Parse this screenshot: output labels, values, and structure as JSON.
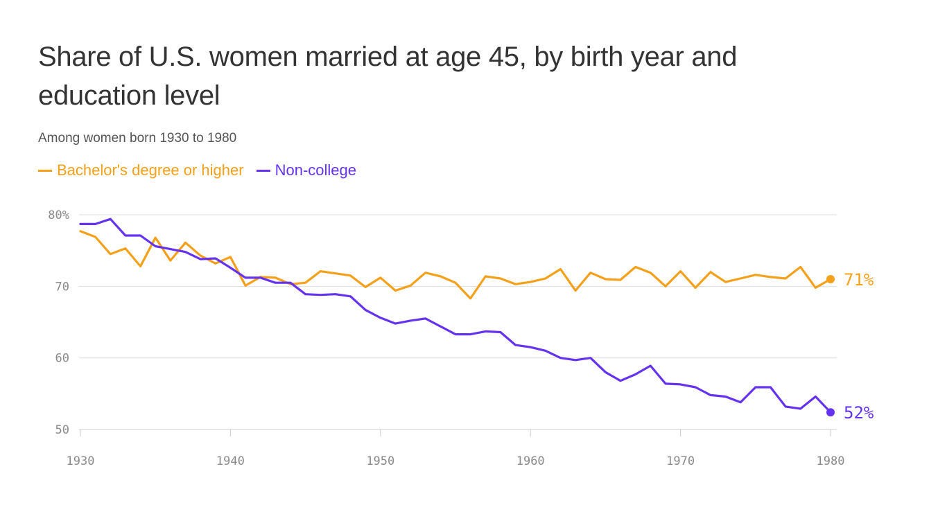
{
  "chart_data": {
    "type": "line",
    "title": "Share of U.S. women married at age 45, by birth year and education level",
    "subtitle": "Among women born 1930 to 1980",
    "x": [
      1930,
      1931,
      1932,
      1933,
      1934,
      1935,
      1936,
      1937,
      1938,
      1939,
      1940,
      1941,
      1942,
      1943,
      1944,
      1945,
      1946,
      1947,
      1948,
      1949,
      1950,
      1951,
      1952,
      1953,
      1954,
      1955,
      1956,
      1957,
      1958,
      1959,
      1960,
      1961,
      1962,
      1963,
      1964,
      1965,
      1966,
      1967,
      1968,
      1969,
      1970,
      1971,
      1972,
      1973,
      1974,
      1975,
      1976,
      1977,
      1978,
      1979,
      1980
    ],
    "series": [
      {
        "name": "Bachelor's degree or higher",
        "color": "#f5a01a",
        "end_label": "71%",
        "values": [
          77.7,
          76.9,
          74.5,
          75.3,
          72.8,
          76.8,
          73.6,
          76.1,
          74.3,
          73.2,
          74.1,
          70.1,
          71.3,
          71.2,
          70.3,
          70.5,
          72.1,
          71.8,
          71.5,
          69.9,
          71.2,
          69.4,
          70.1,
          71.9,
          71.4,
          70.5,
          68.3,
          71.4,
          71.1,
          70.3,
          70.6,
          71.1,
          72.4,
          69.4,
          71.9,
          71.0,
          70.9,
          72.7,
          71.9,
          70.0,
          72.1,
          69.8,
          72.0,
          70.6,
          71.1,
          71.6,
          71.3,
          71.1,
          72.7,
          69.8,
          71.0
        ]
      },
      {
        "name": "Non-college",
        "color": "#6533f0",
        "end_label": "52%",
        "values": [
          78.7,
          78.7,
          79.4,
          77.1,
          77.1,
          75.6,
          75.2,
          74.8,
          73.8,
          73.9,
          72.6,
          71.2,
          71.2,
          70.5,
          70.5,
          68.9,
          68.8,
          68.9,
          68.6,
          66.7,
          65.6,
          64.8,
          65.2,
          65.5,
          64.4,
          63.3,
          63.3,
          63.7,
          63.6,
          61.8,
          61.5,
          61.0,
          60.0,
          59.7,
          60.0,
          58.0,
          56.8,
          57.7,
          58.9,
          56.4,
          56.3,
          55.9,
          54.8,
          54.6,
          53.8,
          55.9,
          55.9,
          53.2,
          52.9,
          54.6,
          52.4
        ]
      }
    ],
    "x_ticks": [
      "1930",
      "1940",
      "1950",
      "1960",
      "1970",
      "1980"
    ],
    "y_ticks": [
      "80%",
      "70",
      "60",
      "50"
    ],
    "xlim": [
      1930,
      1980
    ],
    "ylim": [
      50,
      80
    ],
    "grid": "horizontal",
    "legend_placement": "top-left"
  }
}
